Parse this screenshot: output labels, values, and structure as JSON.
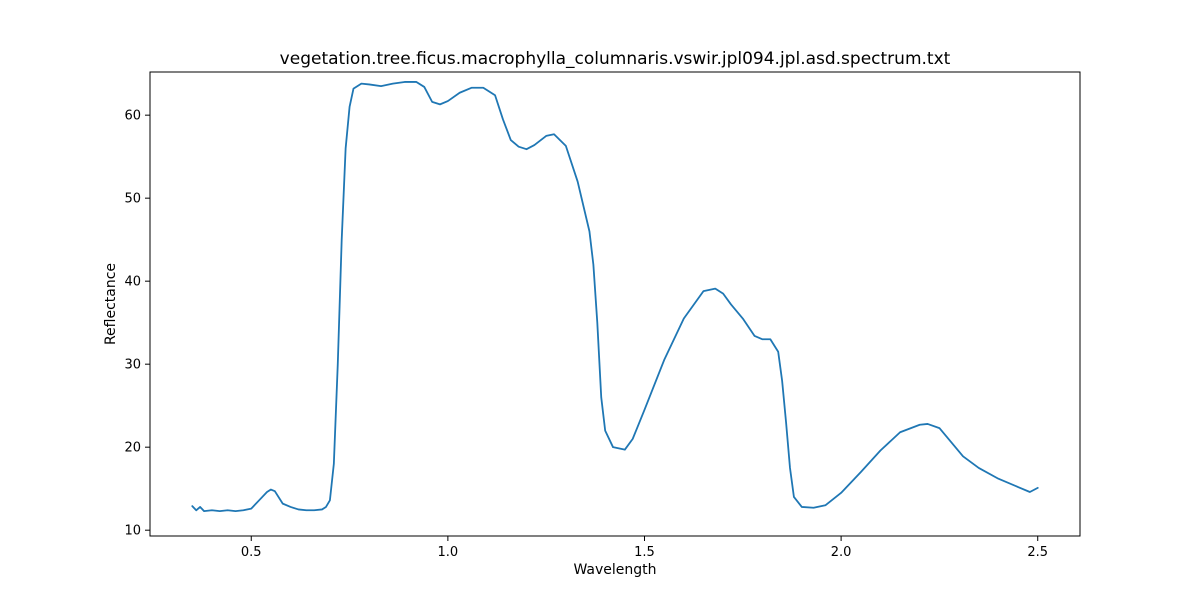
{
  "chart_data": {
    "type": "line",
    "title": "vegetation.tree.ficus.macrophylla_columnaris.vswir.jpl094.jpl.asd.spectrum.txt",
    "xlabel": "Wavelength",
    "ylabel": "Reflectance",
    "xlim": [
      0.2425,
      2.6075
    ],
    "ylim": [
      9.3,
      65.2
    ],
    "x_ticks": [
      0.5,
      1.0,
      1.5,
      2.0,
      2.5
    ],
    "x_tick_labels": [
      "0.5",
      "1.0",
      "1.5",
      "2.0",
      "2.5"
    ],
    "y_ticks": [
      10,
      20,
      30,
      40,
      50,
      60
    ],
    "y_tick_labels": [
      "10",
      "20",
      "30",
      "40",
      "50",
      "60"
    ],
    "grid": false,
    "legend": "none",
    "line_color": "#1f77b4",
    "series": [
      {
        "points": [
          [
            0.35,
            12.9
          ],
          [
            0.36,
            12.4
          ],
          [
            0.37,
            12.8
          ],
          [
            0.38,
            12.3
          ],
          [
            0.4,
            12.4
          ],
          [
            0.42,
            12.3
          ],
          [
            0.44,
            12.4
          ],
          [
            0.46,
            12.3
          ],
          [
            0.48,
            12.4
          ],
          [
            0.5,
            12.6
          ],
          [
            0.52,
            13.6
          ],
          [
            0.54,
            14.6
          ],
          [
            0.55,
            14.9
          ],
          [
            0.56,
            14.7
          ],
          [
            0.58,
            13.2
          ],
          [
            0.6,
            12.8
          ],
          [
            0.62,
            12.5
          ],
          [
            0.64,
            12.4
          ],
          [
            0.66,
            12.4
          ],
          [
            0.68,
            12.5
          ],
          [
            0.69,
            12.8
          ],
          [
            0.7,
            13.6
          ],
          [
            0.71,
            18.0
          ],
          [
            0.72,
            30.0
          ],
          [
            0.73,
            45.0
          ],
          [
            0.74,
            56.0
          ],
          [
            0.75,
            61.0
          ],
          [
            0.76,
            63.2
          ],
          [
            0.78,
            63.8
          ],
          [
            0.8,
            63.7
          ],
          [
            0.83,
            63.5
          ],
          [
            0.86,
            63.8
          ],
          [
            0.89,
            64.0
          ],
          [
            0.92,
            64.0
          ],
          [
            0.94,
            63.4
          ],
          [
            0.96,
            61.6
          ],
          [
            0.98,
            61.3
          ],
          [
            1.0,
            61.7
          ],
          [
            1.03,
            62.7
          ],
          [
            1.06,
            63.3
          ],
          [
            1.09,
            63.3
          ],
          [
            1.12,
            62.4
          ],
          [
            1.14,
            59.5
          ],
          [
            1.16,
            57.0
          ],
          [
            1.18,
            56.2
          ],
          [
            1.2,
            55.9
          ],
          [
            1.22,
            56.4
          ],
          [
            1.25,
            57.5
          ],
          [
            1.27,
            57.7
          ],
          [
            1.3,
            56.3
          ],
          [
            1.33,
            52.0
          ],
          [
            1.36,
            46.0
          ],
          [
            1.37,
            42.0
          ],
          [
            1.38,
            35.0
          ],
          [
            1.39,
            26.0
          ],
          [
            1.4,
            22.0
          ],
          [
            1.42,
            20.0
          ],
          [
            1.45,
            19.7
          ],
          [
            1.47,
            21.0
          ],
          [
            1.5,
            24.5
          ],
          [
            1.55,
            30.5
          ],
          [
            1.6,
            35.5
          ],
          [
            1.65,
            38.8
          ],
          [
            1.68,
            39.1
          ],
          [
            1.7,
            38.5
          ],
          [
            1.72,
            37.2
          ],
          [
            1.75,
            35.5
          ],
          [
            1.78,
            33.4
          ],
          [
            1.8,
            33.0
          ],
          [
            1.82,
            33.0
          ],
          [
            1.84,
            31.5
          ],
          [
            1.85,
            28.0
          ],
          [
            1.86,
            23.0
          ],
          [
            1.87,
            17.5
          ],
          [
            1.88,
            14.0
          ],
          [
            1.9,
            12.8
          ],
          [
            1.93,
            12.7
          ],
          [
            1.96,
            13.0
          ],
          [
            2.0,
            14.5
          ],
          [
            2.05,
            17.0
          ],
          [
            2.1,
            19.6
          ],
          [
            2.15,
            21.8
          ],
          [
            2.2,
            22.7
          ],
          [
            2.22,
            22.8
          ],
          [
            2.25,
            22.3
          ],
          [
            2.28,
            20.6
          ],
          [
            2.31,
            18.9
          ],
          [
            2.35,
            17.5
          ],
          [
            2.4,
            16.2
          ],
          [
            2.45,
            15.2
          ],
          [
            2.48,
            14.6
          ],
          [
            2.5,
            15.1
          ]
        ]
      }
    ]
  }
}
